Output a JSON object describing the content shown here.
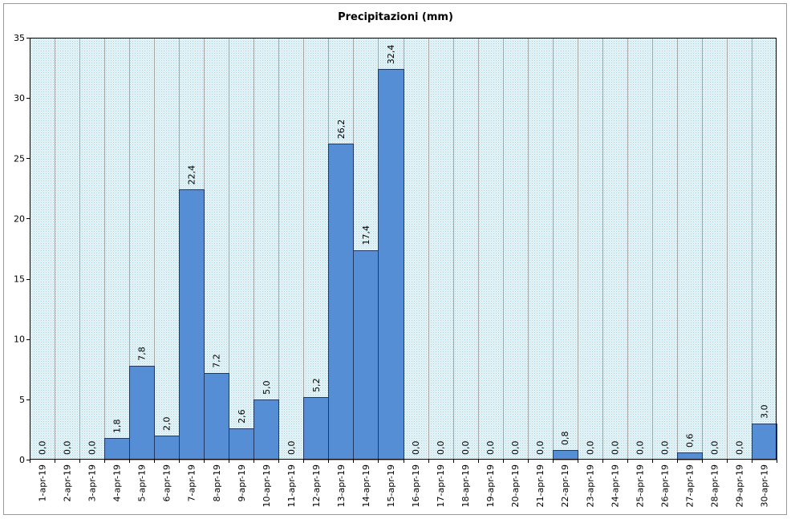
{
  "chart_data": {
    "type": "bar",
    "title": "Precipitazioni (mm)",
    "xlabel": "",
    "ylabel": "",
    "ylim": [
      0,
      35
    ],
    "yticks": [
      0,
      5,
      10,
      15,
      20,
      25,
      30,
      35
    ],
    "grid": true,
    "categories": [
      "1-apr-19",
      "2-apr-19",
      "3-apr-19",
      "4-apr-19",
      "5-apr-19",
      "6-apr-19",
      "7-apr-19",
      "8-apr-19",
      "9-apr-19",
      "10-apr-19",
      "11-apr-19",
      "12-apr-19",
      "13-apr-19",
      "14-apr-19",
      "15-apr-19",
      "16-apr-19",
      "17-apr-19",
      "18-apr-19",
      "19-apr-19",
      "20-apr-19",
      "21-apr-19",
      "22-apr-19",
      "23-apr-19",
      "24-apr-19",
      "25-apr-19",
      "26-apr-19",
      "27-apr-19",
      "28-apr-19",
      "29-apr-19",
      "30-apr-19"
    ],
    "values": [
      0.0,
      0.0,
      0.0,
      1.8,
      7.8,
      2.0,
      22.4,
      7.2,
      2.6,
      5.0,
      0.0,
      5.2,
      26.2,
      17.4,
      32.4,
      0.0,
      0.0,
      0.0,
      0.0,
      0.0,
      0.0,
      0.8,
      0.0,
      0.0,
      0.0,
      0.0,
      0.6,
      0.0,
      0.0,
      3.0
    ],
    "data_labels": [
      "0,0",
      "0,0",
      "0,0",
      "1,8",
      "7,8",
      "2,0",
      "22,4",
      "7,2",
      "2,6",
      "5,0",
      "0,0",
      "5,2",
      "26,2",
      "17,4",
      "32,4",
      "0,0",
      "0,0",
      "0,0",
      "0,0",
      "0,0",
      "0,0",
      "0,8",
      "0,0",
      "0,0",
      "0,0",
      "0,0",
      "0,6",
      "0,0",
      "0,0",
      "3,0"
    ],
    "colors": {
      "bar": "#558ed5",
      "bar_edge": "#1f3864",
      "plot_background": "#daeef3",
      "grid": "#a6a6a6"
    }
  }
}
